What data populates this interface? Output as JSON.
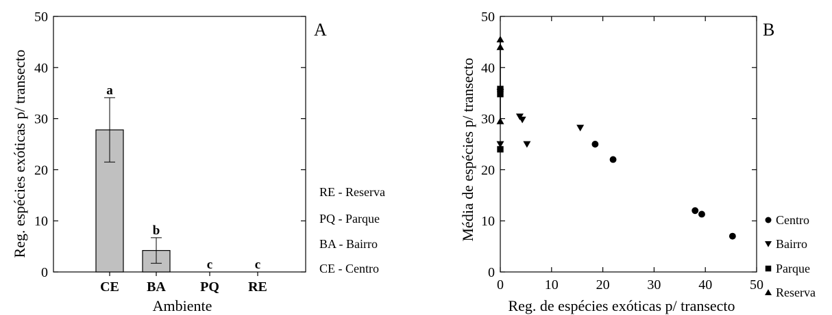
{
  "chart_data": [
    {
      "type": "bar",
      "panel_label": "A",
      "categories": [
        "CE",
        "BA",
        "PQ",
        "RE"
      ],
      "values": [
        27.8,
        4.2,
        0,
        0
      ],
      "errors": [
        6.3,
        2.5,
        0,
        0
      ],
      "significance": [
        "a",
        "b",
        "c",
        "c"
      ],
      "xlabel": "Ambiente",
      "ylabel": "Reg. espécies exóticas p/ transecto",
      "ylim": [
        0,
        50
      ],
      "yticks": [
        0,
        10,
        20,
        30,
        40,
        50
      ],
      "bar_color": "#c0c0c0",
      "legend": [
        "RE - Reserva",
        "PQ - Parque",
        "BA - Bairro",
        "CE - Centro"
      ]
    },
    {
      "type": "scatter",
      "panel_label": "B",
      "xlabel": "Reg. de espécies exóticas p/ transecto",
      "ylabel": "Média de espécies p/ transecto",
      "xlim": [
        0,
        50
      ],
      "ylim": [
        0,
        50
      ],
      "xticks": [
        0,
        10,
        20,
        30,
        40,
        50
      ],
      "yticks": [
        0,
        10,
        20,
        30,
        40,
        50
      ],
      "series": [
        {
          "name": "Centro",
          "marker": "circle",
          "points": [
            [
              18.5,
              25.0
            ],
            [
              22.0,
              22.0
            ],
            [
              38.0,
              12.0
            ],
            [
              39.3,
              11.3
            ],
            [
              45.3,
              7.0
            ]
          ]
        },
        {
          "name": "Bairro",
          "marker": "triangle-down",
          "points": [
            [
              0,
              35.2
            ],
            [
              0,
              25.0
            ],
            [
              3.8,
              30.4
            ],
            [
              4.3,
              29.8
            ],
            [
              5.2,
              25.0
            ],
            [
              15.6,
              28.2
            ]
          ]
        },
        {
          "name": "Parque",
          "marker": "square",
          "points": [
            [
              0,
              35.8
            ],
            [
              0,
              34.8
            ],
            [
              0,
              24.0
            ]
          ]
        },
        {
          "name": "Reserva",
          "marker": "triangle-up",
          "points": [
            [
              0,
              45.5
            ],
            [
              0,
              44.0
            ],
            [
              0,
              29.5
            ]
          ]
        }
      ]
    }
  ]
}
